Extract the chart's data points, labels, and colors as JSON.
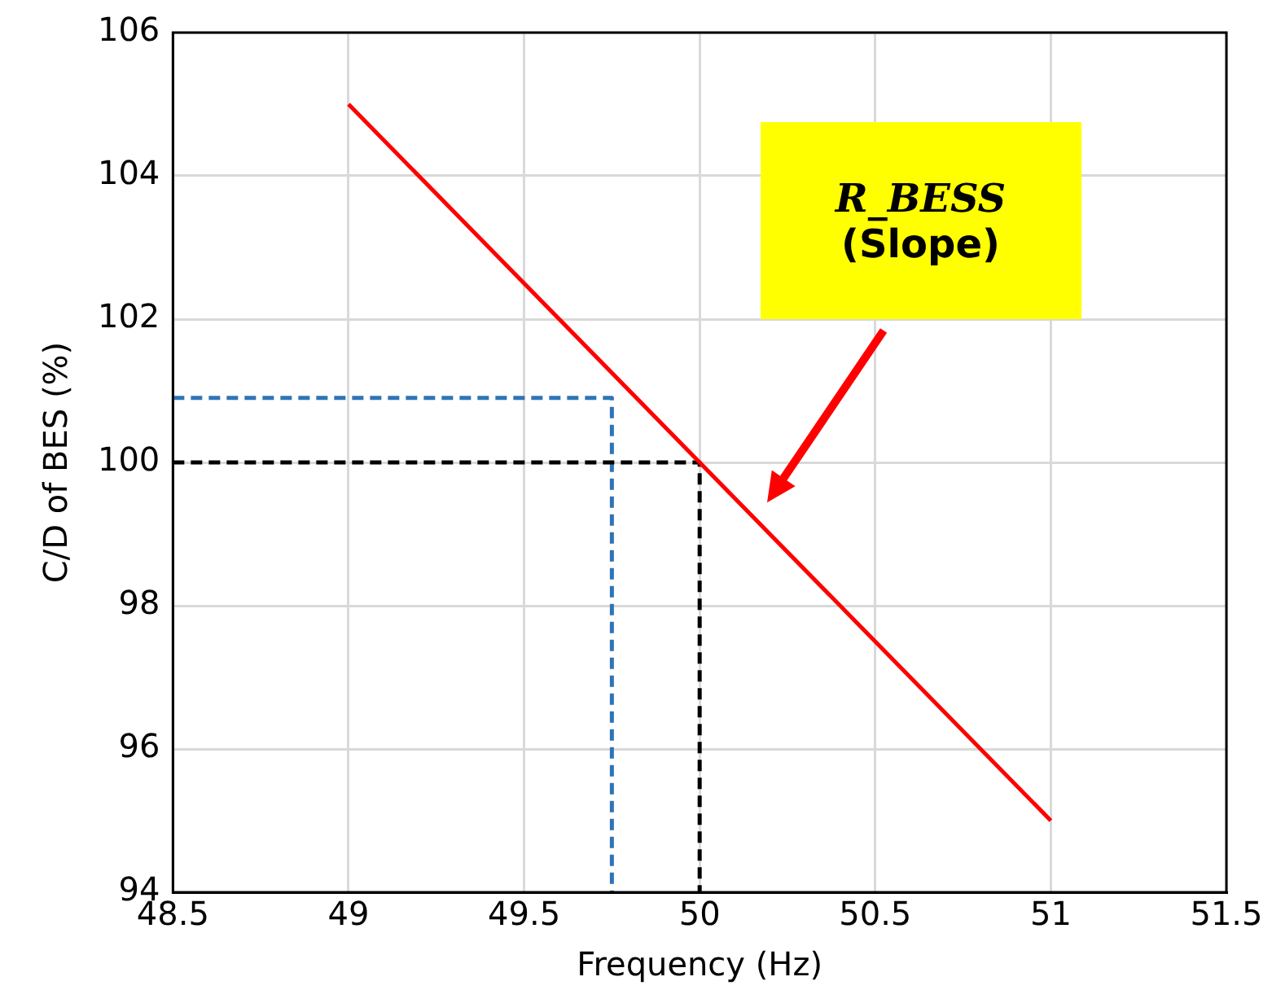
{
  "chart_data": {
    "type": "line",
    "xlabel": "Frequency (Hz)",
    "ylabel": "C/D of BES (%)",
    "xlim": [
      48.5,
      51.5
    ],
    "xticks": [
      48.5,
      49,
      49.5,
      50,
      50.5,
      51,
      51.5
    ],
    "ylim": [
      94,
      106
    ],
    "yticks": [
      94,
      96,
      98,
      100,
      102,
      104,
      106
    ],
    "grid": true,
    "marker": "none",
    "series": [
      {
        "color": "#ff0000",
        "x": [
          49,
          51
        ],
        "values": [
          105,
          95
        ],
        "line_style": "solid"
      },
      {
        "color": "#000000",
        "x": [
          48.5,
          50,
          50
        ],
        "values": [
          100,
          100,
          94
        ],
        "line_style": "dashed"
      },
      {
        "color": "#2e75b6",
        "x": [
          48.5,
          49.75,
          49.75
        ],
        "values": [
          100.9,
          100.9,
          94
        ],
        "line_style": "dashed"
      }
    ],
    "annotations": [
      "R_BESS\n(Slope)"
    ]
  }
}
